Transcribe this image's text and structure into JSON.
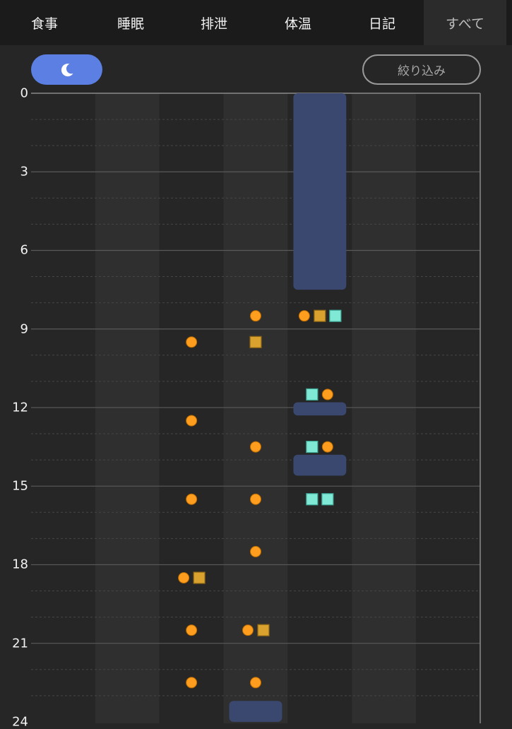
{
  "tabs": [
    {
      "label": "食事",
      "active": false
    },
    {
      "label": "睡眠",
      "active": false
    },
    {
      "label": "排泄",
      "active": false
    },
    {
      "label": "体温",
      "active": false
    },
    {
      "label": "日記",
      "active": false
    },
    {
      "label": "すべて",
      "active": true
    }
  ],
  "toolbar": {
    "sleep_toggle_icon": "moon-icon",
    "filter_label": "絞り込み"
  },
  "colors": {
    "background": "#262626",
    "column_alt": "#2f2f2f",
    "tabbar": "#1b1b1b",
    "accent": "#5b7fe2",
    "meal_marker": "#ff9d1f",
    "excretion_marker": "#d9a12e",
    "temperature_marker": "#7fe9d6",
    "sleep_block": "#3a4870"
  },
  "chart_data": {
    "type": "scatter",
    "y_axis": {
      "ticks": [
        "0",
        "3",
        "6",
        "9",
        "12",
        "15",
        "18",
        "21",
        "24"
      ],
      "range": [
        0,
        24
      ]
    },
    "columns": 7,
    "sleep_blocks": [
      {
        "column": 4,
        "start": 0,
        "end": 7.5
      },
      {
        "column": 4,
        "start": 11.8,
        "end": 12.3
      },
      {
        "column": 4,
        "start": 13.8,
        "end": 14.6
      },
      {
        "column": 3,
        "start": 23.2,
        "end": 24
      }
    ],
    "markers": [
      {
        "column": 2,
        "hour": 9.5,
        "kind": "circle",
        "offset": 0
      },
      {
        "column": 2,
        "hour": 12.5,
        "kind": "circle",
        "offset": 0
      },
      {
        "column": 2,
        "hour": 15.5,
        "kind": "circle",
        "offset": 0
      },
      {
        "column": 2,
        "hour": 18.5,
        "kind": "circle",
        "offset": -1
      },
      {
        "column": 2,
        "hour": 18.5,
        "kind": "square-gold",
        "offset": 1
      },
      {
        "column": 2,
        "hour": 20.5,
        "kind": "circle",
        "offset": 0
      },
      {
        "column": 2,
        "hour": 22.5,
        "kind": "circle",
        "offset": 0
      },
      {
        "column": 3,
        "hour": 8.5,
        "kind": "circle",
        "offset": 0
      },
      {
        "column": 3,
        "hour": 9.5,
        "kind": "square-gold",
        "offset": 0
      },
      {
        "column": 3,
        "hour": 13.5,
        "kind": "circle",
        "offset": 0
      },
      {
        "column": 3,
        "hour": 15.5,
        "kind": "circle",
        "offset": 0
      },
      {
        "column": 3,
        "hour": 17.5,
        "kind": "circle",
        "offset": 0
      },
      {
        "column": 3,
        "hour": 20.5,
        "kind": "circle",
        "offset": -1
      },
      {
        "column": 3,
        "hour": 20.5,
        "kind": "square-gold",
        "offset": 1
      },
      {
        "column": 3,
        "hour": 22.5,
        "kind": "circle",
        "offset": 0
      },
      {
        "column": 4,
        "hour": 8.5,
        "kind": "circle",
        "offset": -2
      },
      {
        "column": 4,
        "hour": 8.5,
        "kind": "square-gold",
        "offset": 0
      },
      {
        "column": 4,
        "hour": 8.5,
        "kind": "square-teal",
        "offset": 2
      },
      {
        "column": 4,
        "hour": 11.5,
        "kind": "square-teal",
        "offset": -1
      },
      {
        "column": 4,
        "hour": 11.5,
        "kind": "circle",
        "offset": 1
      },
      {
        "column": 4,
        "hour": 13.5,
        "kind": "square-teal",
        "offset": -1
      },
      {
        "column": 4,
        "hour": 13.5,
        "kind": "circle",
        "offset": 1
      },
      {
        "column": 4,
        "hour": 15.5,
        "kind": "square-teal",
        "offset": -1
      },
      {
        "column": 4,
        "hour": 15.5,
        "kind": "square-teal",
        "offset": 1
      }
    ]
  }
}
